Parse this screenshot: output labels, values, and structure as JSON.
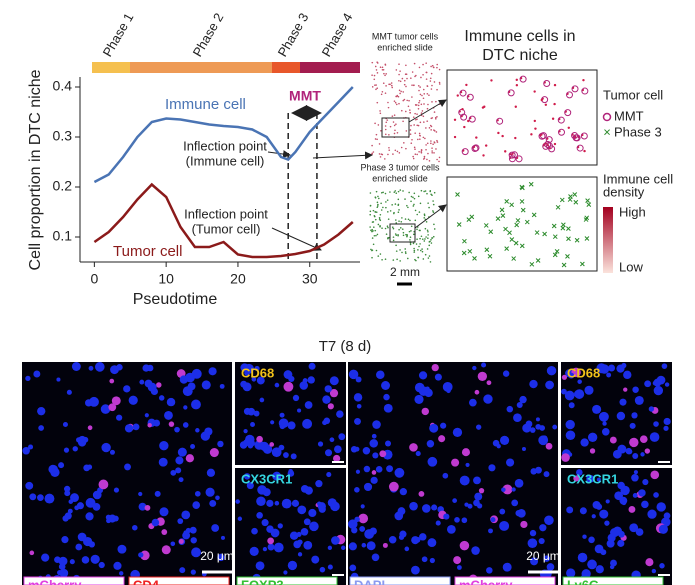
{
  "chart_data": {
    "type": "line",
    "x_label": "Pseudotime",
    "y_label": "Cell proportion in DTC niche",
    "x": [
      0,
      2,
      4,
      6,
      8,
      10,
      12,
      14,
      16,
      18,
      20,
      22,
      24,
      26,
      27,
      28,
      30,
      32,
      34,
      36
    ],
    "series": [
      {
        "name": "Immune cell",
        "color": "#4a74b4",
        "values": [
          0.21,
          0.225,
          0.26,
          0.3,
          0.33,
          0.337,
          0.335,
          0.33,
          0.325,
          0.322,
          0.32,
          0.315,
          0.3,
          0.26,
          0.255,
          0.27,
          0.31,
          0.34,
          0.37,
          0.4
        ]
      },
      {
        "name": "Tumor cell",
        "color": "#8b1a1a",
        "values": [
          0.09,
          0.11,
          0.14,
          0.175,
          0.205,
          0.18,
          0.12,
          0.08,
          0.08,
          0.09,
          0.065,
          0.06,
          0.06,
          0.062,
          0.064,
          0.066,
          0.072,
          0.085,
          0.105,
          0.13
        ]
      }
    ],
    "xlim": [
      -2,
      37
    ],
    "ylim": [
      0.05,
      0.42
    ],
    "xticks": [
      0,
      10,
      20,
      30
    ],
    "yticks": [
      0.1,
      0.2,
      0.3,
      0.4
    ],
    "vlines": [
      27,
      31
    ],
    "phases": [
      {
        "label": "Phase 1",
        "color": "#f5c04f"
      },
      {
        "label": "Phase 2",
        "color": "#ee9a55"
      },
      {
        "label": "Phase 3",
        "color": "#e8572a"
      },
      {
        "label": "Phase 4",
        "color": "#a31d4f"
      }
    ],
    "annotations": {
      "mmt": "MMT",
      "immune_inflection": [
        "Inflection point",
        "(Immune cell)"
      ],
      "tumor_inflection": [
        "Inflection point",
        "(Tumor cell)"
      ]
    }
  },
  "side_panel": {
    "title": [
      "Immune cells in",
      "DTC niche"
    ],
    "mmt_slide": [
      "MMT tumor cells",
      "enriched slide"
    ],
    "phase3_slide": [
      "Phase 3 tumor cells",
      "enriched slide"
    ],
    "scale": "2 mm",
    "legend_title": "Tumor cell",
    "legend_items": [
      "MMT",
      "Phase 3"
    ],
    "density_title": [
      "Immune cell",
      "density"
    ],
    "density_high": "High",
    "density_low": "Low"
  },
  "microscopy": {
    "title": "T7 (8 d)",
    "markers": [
      "CD68",
      "CX3CR1"
    ],
    "scale": "20 μm",
    "left_channels": [
      "mCherry",
      "CD4",
      "FOXP3"
    ],
    "right_channels": [
      "DAPI",
      "mCherry",
      "Ly6G"
    ]
  }
}
